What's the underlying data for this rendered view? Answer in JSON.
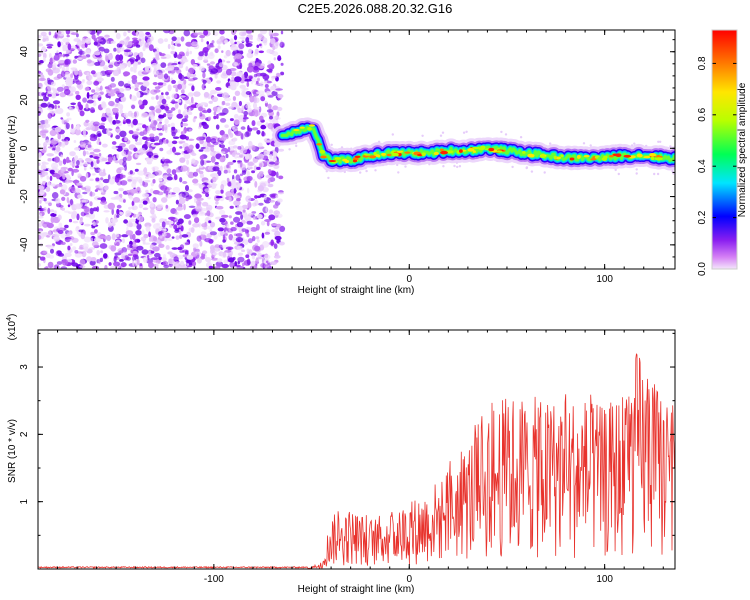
{
  "title": "C2E5.2026.088.20.32.G16",
  "chart_data": [
    {
      "type": "heatmap",
      "xlabel": "Height of straight line (km)",
      "ylabel": "Frequency (Hz)",
      "xlim": [
        -190,
        136
      ],
      "ylim": [
        -50,
        49
      ],
      "xticks": [
        -100,
        0,
        100
      ],
      "yticks": [
        -40,
        -20,
        0,
        20,
        40
      ],
      "noise_region_x": [
        -190,
        -65
      ],
      "signal_track": [
        {
          "x": -65,
          "y": 5
        },
        {
          "x": -55,
          "y": 8
        },
        {
          "x": -50,
          "y": 9
        },
        {
          "x": -47,
          "y": 4
        },
        {
          "x": -44,
          "y": -3
        },
        {
          "x": -40,
          "y": -5
        },
        {
          "x": -30,
          "y": -5
        },
        {
          "x": -20,
          "y": -3
        },
        {
          "x": -10,
          "y": -2
        },
        {
          "x": 0,
          "y": -2
        },
        {
          "x": 10,
          "y": -2
        },
        {
          "x": 20,
          "y": -1
        },
        {
          "x": 30,
          "y": -1
        },
        {
          "x": 40,
          "y": 0
        },
        {
          "x": 50,
          "y": -1
        },
        {
          "x": 60,
          "y": -2
        },
        {
          "x": 70,
          "y": -3
        },
        {
          "x": 80,
          "y": -4
        },
        {
          "x": 90,
          "y": -4
        },
        {
          "x": 100,
          "y": -4
        },
        {
          "x": 110,
          "y": -3
        },
        {
          "x": 120,
          "y": -3
        },
        {
          "x": 130,
          "y": -4
        },
        {
          "x": 136,
          "y": -4
        }
      ],
      "colorbar": {
        "label": "Normalized spectral amplitude",
        "range": [
          0.0,
          0.93
        ],
        "ticks": [
          0.0,
          0.2,
          0.4,
          0.6,
          0.8
        ],
        "tick_labels": [
          "0.0",
          "0.2",
          "0.4",
          "0.6",
          "0.8"
        ]
      }
    },
    {
      "type": "line",
      "xlabel": "Height of straight line (km)",
      "ylabel": "SNR (10 * v/v)",
      "y_scale_label": "(x10",
      "y_scale_exponent": "4",
      "xlim": [
        -190,
        136
      ],
      "ylim": [
        0,
        3.55
      ],
      "xticks": [
        -100,
        0,
        100
      ],
      "yticks": [
        1,
        2,
        3
      ],
      "color": "#e8322c",
      "envelope": [
        {
          "x": -190,
          "y": 0.02
        },
        {
          "x": -52,
          "y": 0.02
        },
        {
          "x": -45,
          "y": 0.1
        },
        {
          "x": -40,
          "y": 0.8
        },
        {
          "x": -30,
          "y": 0.9
        },
        {
          "x": -20,
          "y": 0.75
        },
        {
          "x": -10,
          "y": 0.85
        },
        {
          "x": 0,
          "y": 1.0
        },
        {
          "x": 10,
          "y": 1.2
        },
        {
          "x": 20,
          "y": 1.5
        },
        {
          "x": 30,
          "y": 1.9
        },
        {
          "x": 40,
          "y": 2.3
        },
        {
          "x": 50,
          "y": 2.6
        },
        {
          "x": 60,
          "y": 2.6
        },
        {
          "x": 70,
          "y": 2.5
        },
        {
          "x": 80,
          "y": 2.6
        },
        {
          "x": 90,
          "y": 2.5
        },
        {
          "x": 100,
          "y": 2.4
        },
        {
          "x": 110,
          "y": 2.7
        },
        {
          "x": 117,
          "y": 3.3
        },
        {
          "x": 125,
          "y": 2.8
        },
        {
          "x": 136,
          "y": 2.4
        }
      ]
    }
  ]
}
